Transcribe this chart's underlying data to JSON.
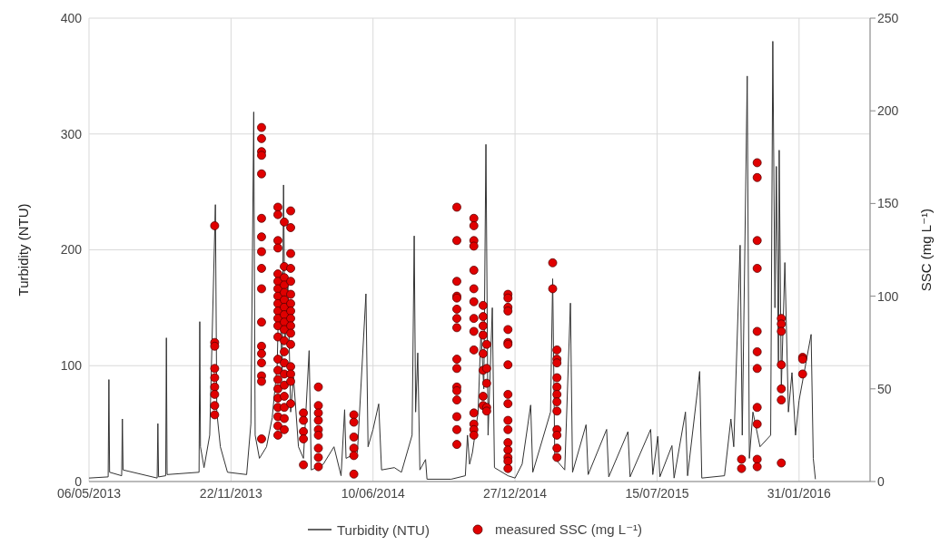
{
  "chart_data": {
    "type": "line",
    "xlim": [
      "2013-05-06",
      "2016-05-10"
    ],
    "xticks": [
      {
        "value": "2013-05-06",
        "label": "06/05/2013"
      },
      {
        "value": "2013-11-22",
        "label": "22/11/2013"
      },
      {
        "value": "2014-06-10",
        "label": "10/06/2014"
      },
      {
        "value": "2014-12-27",
        "label": "27/12/2014"
      },
      {
        "value": "2015-07-15",
        "label": "15/07/2015"
      },
      {
        "value": "2016-01-31",
        "label": "31/01/2016"
      }
    ],
    "ylim": [
      0,
      400
    ],
    "yticks": [
      0,
      100,
      200,
      300,
      400
    ],
    "y2lim": [
      0,
      250
    ],
    "y2ticks": [
      0,
      50,
      100,
      150,
      200,
      250
    ],
    "ylabel": "Turbidity (NTU)",
    "y2label": "SSC  (mg L⁻¹)",
    "grid": true,
    "legend": "bottom",
    "series": [
      {
        "name": "Turbidity (NTU)",
        "color": "#333333",
        "marker": "none",
        "x": [
          "2013-05-06",
          "2013-06-02",
          "2013-06-03",
          "2013-06-04",
          "2013-06-21",
          "2013-06-22",
          "2013-06-23",
          "2013-08-10",
          "2013-08-11",
          "2013-08-12",
          "2013-08-22",
          "2013-08-23",
          "2013-08-24",
          "2013-10-08",
          "2013-10-09",
          "2013-10-10",
          "2013-10-15",
          "2013-10-23",
          "2013-10-31",
          "2013-11-02",
          "2013-11-07",
          "2013-11-17",
          "2013-12-14",
          "2013-12-20",
          "2013-12-24",
          "2013-12-26",
          "2014-01-01",
          "2014-01-11",
          "2014-01-19",
          "2014-01-26",
          "2014-01-29",
          "2014-02-02",
          "2014-02-04",
          "2014-02-06",
          "2014-02-10",
          "2014-02-14",
          "2014-02-18",
          "2014-02-25",
          "2014-03-04",
          "2014-03-12",
          "2014-03-15",
          "2014-04-01",
          "2014-04-16",
          "2014-04-26",
          "2014-05-01",
          "2014-05-03",
          "2014-05-19",
          "2014-05-31",
          "2014-06-03",
          "2014-06-10",
          "2014-06-18",
          "2014-06-22",
          "2014-07-10",
          "2014-07-20",
          "2014-08-04",
          "2014-08-07",
          "2014-08-09",
          "2014-08-12",
          "2014-08-15",
          "2014-08-23",
          "2014-08-25",
          "2014-09-28",
          "2014-10-18",
          "2014-10-21",
          "2014-10-24",
          "2014-10-28",
          "2014-11-05",
          "2014-11-09",
          "2014-11-13",
          "2014-11-16",
          "2014-11-19",
          "2014-11-25",
          "2014-11-28",
          "2014-12-17",
          "2014-12-27",
          "2015-01-06",
          "2015-01-18",
          "2015-01-21",
          "2015-02-15",
          "2015-02-18",
          "2015-02-21",
          "2015-03-07",
          "2015-03-15",
          "2015-03-18",
          "2015-04-06",
          "2015-04-09",
          "2015-05-05",
          "2015-05-08",
          "2015-06-04",
          "2015-06-07",
          "2015-07-06",
          "2015-07-09",
          "2015-07-16",
          "2015-07-19",
          "2015-08-05",
          "2015-08-08",
          "2015-08-24",
          "2015-08-27",
          "2015-09-13",
          "2015-09-16",
          "2015-10-18",
          "2015-10-27",
          "2015-10-31",
          "2015-11-09",
          "2015-11-12",
          "2015-11-19",
          "2015-11-22",
          "2015-11-27",
          "2015-12-07",
          "2015-12-22",
          "2015-12-25",
          "2015-12-28",
          "2015-12-30",
          "2016-01-02",
          "2016-01-03",
          "2016-01-06",
          "2016-01-11",
          "2016-01-16",
          "2016-01-21",
          "2016-01-26",
          "2016-01-31",
          "2016-02-17",
          "2016-02-20",
          "2016-02-23"
        ],
        "values": [
          3,
          4,
          88,
          8,
          5,
          54,
          10,
          3,
          50,
          4,
          5,
          124,
          6,
          8,
          138,
          30,
          12,
          40,
          239,
          60,
          30,
          8,
          6,
          50,
          319,
          40,
          20,
          30,
          55,
          100,
          180,
          90,
          256,
          120,
          175,
          60,
          90,
          30,
          20,
          113,
          10,
          15,
          30,
          5,
          62,
          20,
          25,
          162,
          30,
          45,
          67,
          10,
          12,
          8,
          40,
          212,
          60,
          111,
          10,
          19,
          2,
          2,
          5,
          40,
          15,
          25,
          60,
          130,
          80,
          291,
          40,
          150,
          12,
          5,
          3,
          15,
          66,
          8,
          60,
          175,
          20,
          10,
          154,
          8,
          49,
          6,
          45,
          4,
          43,
          4,
          45,
          6,
          39,
          4,
          31,
          3,
          60,
          5,
          95,
          3,
          5,
          54,
          30,
          204,
          40,
          350,
          20,
          60,
          30,
          40,
          380,
          150,
          272,
          100,
          286,
          80,
          189,
          60,
          94,
          40,
          70,
          127,
          20,
          2
        ]
      },
      {
        "name": "measured SSC (mg L⁻¹)",
        "type": "scatter",
        "axis": "y2",
        "color": "#e00000",
        "marker": "circle",
        "x": [
          "2013-10-30",
          "2013-10-30",
          "2013-10-30",
          "2013-10-30",
          "2013-10-30",
          "2013-10-30",
          "2013-10-30",
          "2013-10-30",
          "2013-10-30",
          "2014-01-04",
          "2014-01-04",
          "2014-01-04",
          "2014-01-04",
          "2014-01-04",
          "2014-01-04",
          "2014-01-04",
          "2014-01-04",
          "2014-01-04",
          "2014-01-04",
          "2014-01-04",
          "2014-01-04",
          "2014-01-04",
          "2014-01-04",
          "2014-01-04",
          "2014-01-04",
          "2014-01-04",
          "2014-01-27",
          "2014-01-27",
          "2014-01-27",
          "2014-01-27",
          "2014-01-27",
          "2014-01-27",
          "2014-01-27",
          "2014-01-27",
          "2014-01-27",
          "2014-01-27",
          "2014-01-27",
          "2014-01-27",
          "2014-01-27",
          "2014-01-27",
          "2014-01-27",
          "2014-01-27",
          "2014-01-27",
          "2014-01-27",
          "2014-01-27",
          "2014-01-27",
          "2014-01-27",
          "2014-01-27",
          "2014-02-05",
          "2014-02-05",
          "2014-02-05",
          "2014-02-05",
          "2014-02-05",
          "2014-02-05",
          "2014-02-05",
          "2014-02-05",
          "2014-02-05",
          "2014-02-05",
          "2014-02-05",
          "2014-02-05",
          "2014-02-05",
          "2014-02-05",
          "2014-02-05",
          "2014-02-05",
          "2014-02-05",
          "2014-02-05",
          "2014-02-05",
          "2014-02-14",
          "2014-02-14",
          "2014-02-14",
          "2014-02-14",
          "2014-02-14",
          "2014-02-14",
          "2014-02-14",
          "2014-02-14",
          "2014-02-14",
          "2014-02-14",
          "2014-02-14",
          "2014-02-14",
          "2014-02-14",
          "2014-02-14",
          "2014-02-14",
          "2014-02-14",
          "2014-03-04",
          "2014-03-04",
          "2014-03-04",
          "2014-03-04",
          "2014-03-04",
          "2014-03-25",
          "2014-03-25",
          "2014-03-25",
          "2014-03-25",
          "2014-03-25",
          "2014-03-25",
          "2014-03-25",
          "2014-03-25",
          "2014-03-25",
          "2014-05-14",
          "2014-05-14",
          "2014-05-14",
          "2014-05-14",
          "2014-05-14",
          "2014-05-14",
          "2014-10-06",
          "2014-10-06",
          "2014-10-06",
          "2014-10-06",
          "2014-10-06",
          "2014-10-06",
          "2014-10-06",
          "2014-10-06",
          "2014-10-06",
          "2014-10-06",
          "2014-10-06",
          "2014-10-06",
          "2014-10-06",
          "2014-10-06",
          "2014-10-06",
          "2014-10-06",
          "2014-10-30",
          "2014-10-30",
          "2014-10-30",
          "2014-10-30",
          "2014-10-30",
          "2014-10-30",
          "2014-10-30",
          "2014-10-30",
          "2014-10-30",
          "2014-10-30",
          "2014-10-30",
          "2014-10-30",
          "2014-10-30",
          "2014-10-30",
          "2014-11-12",
          "2014-11-12",
          "2014-11-12",
          "2014-11-12",
          "2014-11-12",
          "2014-11-12",
          "2014-11-12",
          "2014-11-12",
          "2014-11-17",
          "2014-11-17",
          "2014-11-17",
          "2014-11-17",
          "2014-11-17",
          "2014-12-17",
          "2014-12-17",
          "2014-12-17",
          "2014-12-17",
          "2014-12-17",
          "2014-12-17",
          "2014-12-17",
          "2014-12-17",
          "2014-12-17",
          "2014-12-17",
          "2014-12-17",
          "2014-12-17",
          "2014-12-17",
          "2014-12-17",
          "2014-12-17",
          "2014-12-17",
          "2014-12-17",
          "2015-02-18",
          "2015-02-18",
          "2015-02-24",
          "2015-02-24",
          "2015-02-24",
          "2015-02-24",
          "2015-02-24",
          "2015-02-24",
          "2015-02-24",
          "2015-02-24",
          "2015-02-24",
          "2015-02-24",
          "2015-02-24",
          "2015-02-24",
          "2015-11-11",
          "2015-11-11",
          "2015-12-03",
          "2015-12-03",
          "2015-12-03",
          "2015-12-03",
          "2015-12-03",
          "2015-12-03",
          "2015-12-03",
          "2015-12-03",
          "2015-12-03",
          "2015-12-03",
          "2015-12-03",
          "2016-01-06",
          "2016-01-06",
          "2016-01-06",
          "2016-01-06",
          "2016-01-06",
          "2016-01-06",
          "2016-01-06",
          "2016-02-05",
          "2016-02-05",
          "2016-02-05"
        ],
        "values": [
          138,
          75,
          73,
          61,
          56,
          51,
          47,
          41,
          36,
          191,
          185,
          178,
          176,
          166,
          142,
          132,
          124,
          115,
          104,
          86,
          73,
          69,
          64,
          57,
          54,
          23,
          148,
          144,
          130,
          126,
          112,
          108,
          104,
          100,
          96,
          92,
          88,
          84,
          78,
          66,
          60,
          55,
          50,
          45,
          40,
          35,
          30,
          25,
          140,
          116,
          110,
          106,
          102,
          98,
          94,
          90,
          86,
          82,
          76,
          70,
          64,
          58,
          52,
          46,
          40,
          34,
          28,
          146,
          137,
          123,
          115,
          108,
          101,
          96,
          92,
          88,
          84,
          80,
          74,
          62,
          58,
          54,
          42,
          37,
          33,
          27,
          23,
          9,
          51,
          41,
          37,
          33,
          28,
          25,
          18,
          13,
          8,
          36,
          32,
          24,
          18,
          14,
          4,
          148,
          130,
          108,
          100,
          99,
          93,
          88,
          83,
          66,
          61,
          51,
          49,
          44,
          35,
          28,
          20,
          142,
          138,
          130,
          127,
          114,
          104,
          97,
          88,
          81,
          71,
          37,
          31,
          28,
          25,
          95,
          89,
          84,
          79,
          69,
          60,
          46,
          41,
          74,
          61,
          53,
          40,
          38,
          101,
          99,
          94,
          92,
          82,
          75,
          74,
          63,
          47,
          42,
          33,
          28,
          21,
          17,
          13,
          11,
          7,
          118,
          104,
          71,
          66,
          64,
          56,
          51,
          47,
          43,
          38,
          28,
          25,
          18,
          13,
          12,
          7,
          172,
          164,
          130,
          115,
          81,
          70,
          61,
          40,
          31,
          12,
          8,
          88,
          85,
          81,
          63,
          50,
          44,
          10,
          67,
          66,
          58
        ]
      }
    ]
  }
}
